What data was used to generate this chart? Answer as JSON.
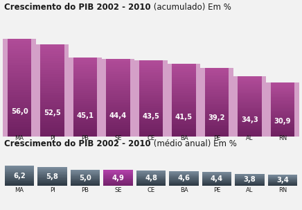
{
  "categories": [
    "MA",
    "PI",
    "PB",
    "SE",
    "CE",
    "BA",
    "PE",
    "AL",
    "RN"
  ],
  "values_accumulated": [
    56.0,
    52.5,
    45.1,
    44.4,
    43.5,
    41.5,
    39.2,
    34.3,
    30.9
  ],
  "values_annual": [
    6.2,
    5.8,
    5.0,
    4.9,
    4.8,
    4.6,
    4.4,
    3.8,
    3.4
  ],
  "title1_bold": "Crescimento do PIB 2002 - 2010",
  "title1_normal": " (acumulado) Em %",
  "title2_bold": "Crescimento do PIB 2002 - 2010",
  "title2_normal": " (médio anual) Em %",
  "bar_dark_purple": "#8b3478",
  "bar_light_purple": "#d4a0c8",
  "bar_bg_pink": "#e0b8d8",
  "annual_dark": "#2e3e48",
  "annual_mid": "#607080",
  "annual_light": "#8898a8",
  "annual_highlight_top": "#a040a0",
  "annual_highlight_bot": "#702870",
  "highlight_index": 3,
  "bg_color": "#f2f2f2",
  "white": "#ffffff",
  "dark_text": "#1a1a1a"
}
